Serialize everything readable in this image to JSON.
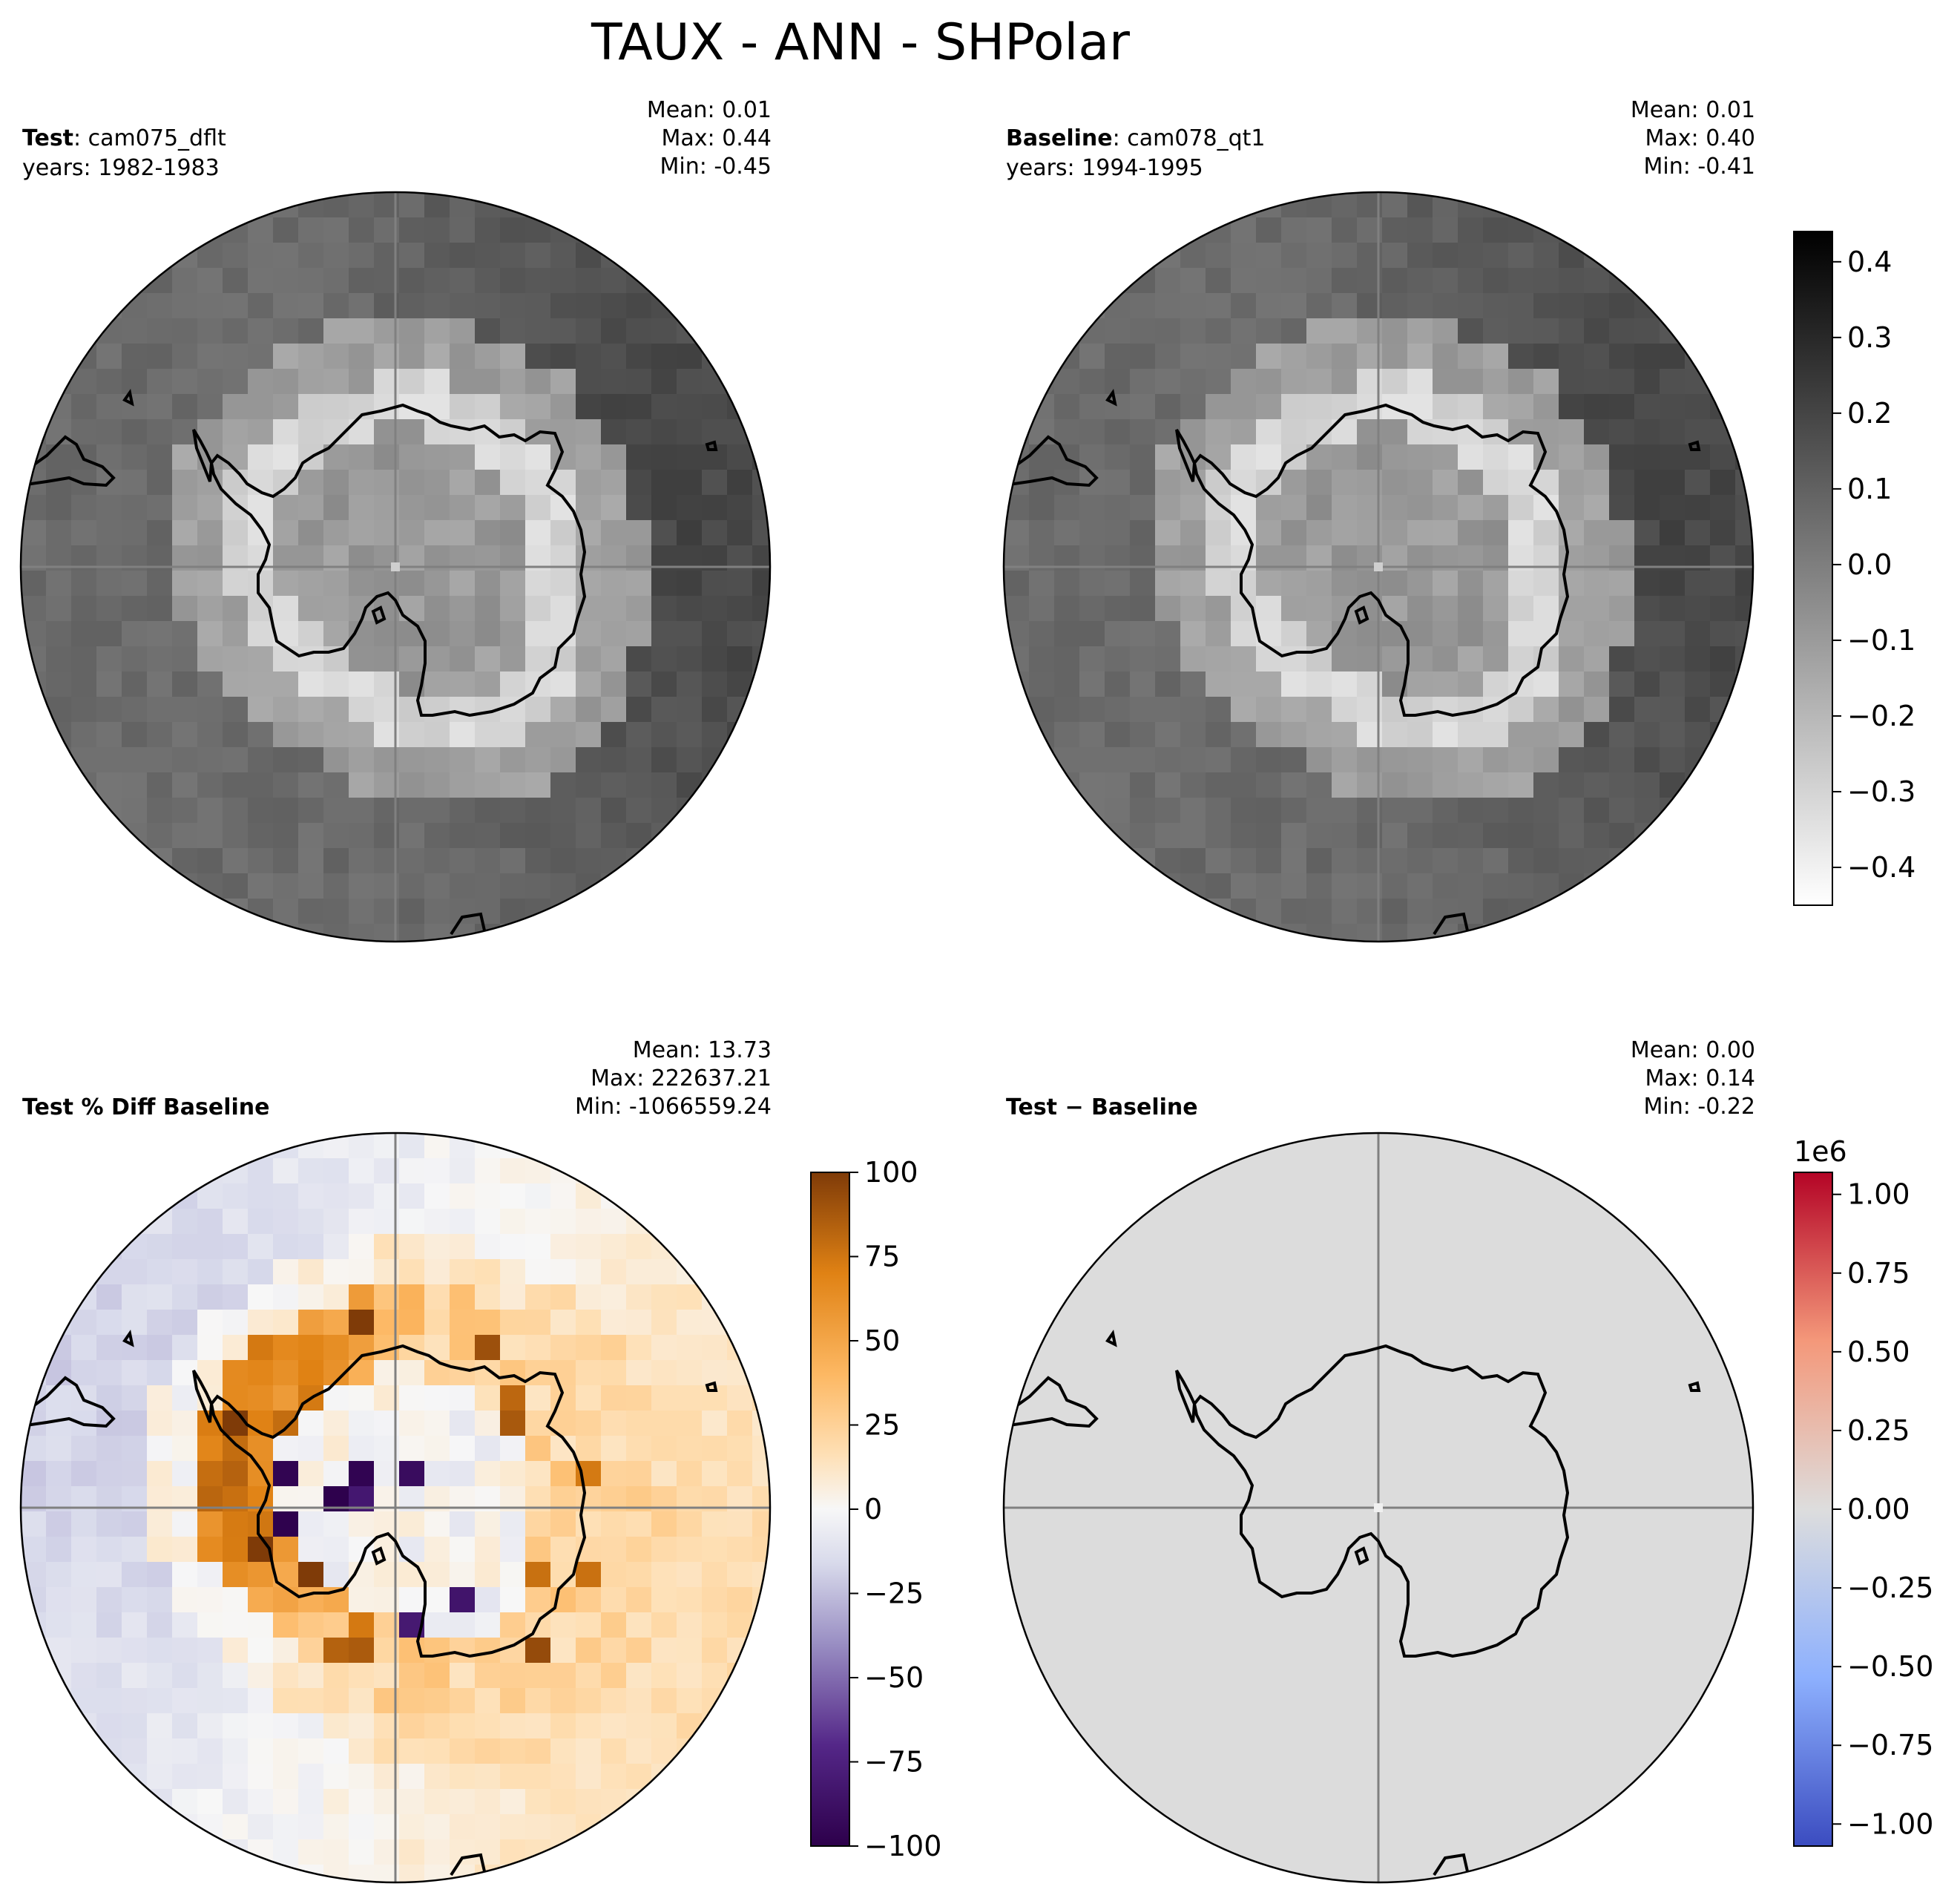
{
  "figure": {
    "title": "TAUX - ANN - SHPolar"
  },
  "panels": [
    {
      "id": "test",
      "label_bold": "Test",
      "label_rest": ": cam075_dflt",
      "years": "years: 1982-1983",
      "stats": [
        "Mean:  0.01",
        "Max:  0.44",
        "Min: -0.45"
      ],
      "colormap": "gray_r"
    },
    {
      "id": "baseline",
      "label_bold": "Baseline",
      "label_rest": ": cam078_qt1",
      "years": "years: 1994-1995",
      "stats": [
        "Mean:  0.01",
        "Max:  0.40",
        "Min: -0.41"
      ],
      "colormap": "gray_r"
    },
    {
      "id": "pctdiff",
      "label_bold": "Test % Diff Baseline",
      "label_rest": "",
      "years": "",
      "stats": [
        "Mean: 13.73",
        "Max: 222637.21",
        "Min: -1066559.24"
      ],
      "colormap": "PuOr_r"
    },
    {
      "id": "diff",
      "label_bold": "Test − Baseline",
      "label_rest": "",
      "years": "",
      "stats": [
        "Mean:  0.00",
        "Max:  0.14",
        "Min: -0.22"
      ],
      "colormap": "coolwarm"
    }
  ],
  "colorbars": [
    {
      "id": "cb-top",
      "colormap": "gray_r",
      "range": [
        -0.45,
        0.44
      ],
      "ticks": [
        0.4,
        0.3,
        0.2,
        0.1,
        0.0,
        -0.1,
        -0.2,
        -0.3,
        -0.4
      ],
      "tick_labels": [
        "0.4",
        "0.3",
        "0.2",
        "0.1",
        "0.0",
        "−0.1",
        "−0.2",
        "−0.3",
        "−0.4"
      ],
      "offset_label": ""
    },
    {
      "id": "cb-pct",
      "colormap": "PuOr_r",
      "range": [
        -100,
        100
      ],
      "ticks": [
        100,
        75,
        50,
        25,
        0,
        -25,
        -50,
        -75,
        -100
      ],
      "tick_labels": [
        "100",
        "75",
        "50",
        "25",
        "0",
        "−25",
        "−50",
        "−75",
        "−100"
      ],
      "offset_label": ""
    },
    {
      "id": "cb-diff",
      "colormap": "coolwarm",
      "range": [
        -1.07,
        1.07
      ],
      "ticks": [
        1.0,
        0.75,
        0.5,
        0.25,
        0.0,
        -0.25,
        -0.5,
        -0.75,
        -1.0
      ],
      "tick_labels": [
        "1.00",
        "0.75",
        "0.50",
        "0.25",
        "0.00",
        "−0.25",
        "−0.50",
        "−0.75",
        "−1.00"
      ],
      "offset_label": "1e6"
    }
  ],
  "chart_data": {
    "type": "heatmap",
    "projection": "south-polar-stereographic",
    "variable": "TAUX",
    "season": "ANN",
    "region": "SHPolar",
    "panels": [
      {
        "name": "Test",
        "case": "cam075_dflt",
        "years": "1982-1983",
        "mean": 0.01,
        "max": 0.44,
        "min": -0.45
      },
      {
        "name": "Baseline",
        "case": "cam078_qt1",
        "years": "1994-1995",
        "mean": 0.01,
        "max": 0.4,
        "min": -0.41
      },
      {
        "name": "Test % Diff Baseline",
        "mean": 13.73,
        "max": 222637.21,
        "min": -1066559.24
      },
      {
        "name": "Test − Baseline",
        "mean": 0.0,
        "max": 0.14,
        "min": -0.22
      }
    ],
    "grid": "on"
  }
}
